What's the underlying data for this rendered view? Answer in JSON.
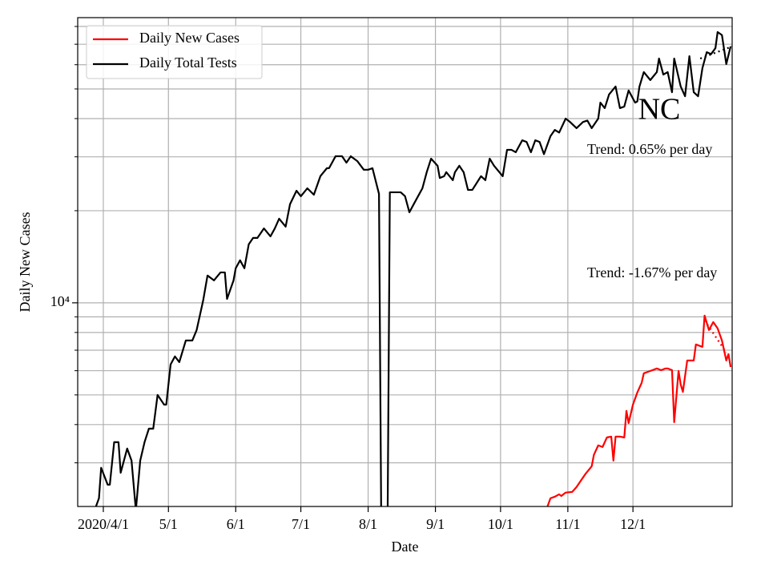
{
  "chart_data": {
    "type": "line",
    "title": "NC",
    "xlabel": "Date",
    "ylabel": "Daily New Cases",
    "annotations": [
      "Trend: 0.65% per day",
      "Trend: -1.67% per day"
    ],
    "log_y": true,
    "grid": true,
    "legend": "upper left",
    "xlim": [
      -11.8,
      289.7
    ],
    "xticks": [
      {
        "value": 0,
        "label": "2020/4/1"
      },
      {
        "value": 30,
        "label": "5/1"
      },
      {
        "value": 61,
        "label": "6/1"
      },
      {
        "value": 91,
        "label": "7/1"
      },
      {
        "value": 122,
        "label": "8/1"
      },
      {
        "value": 153,
        "label": "9/1"
      },
      {
        "value": 183,
        "label": "10/1"
      },
      {
        "value": 214,
        "label": "11/1"
      },
      {
        "value": 244,
        "label": "12/1"
      }
    ],
    "ylim": [
      2160,
      85500
    ],
    "yticks": [
      {
        "value": 10000,
        "label": "10⁴"
      }
    ],
    "yminorticks": [
      3000,
      4000,
      5000,
      6000,
      7000,
      8000,
      9000,
      20000,
      30000,
      40000,
      50000,
      60000,
      70000,
      80000
    ],
    "series": [
      {
        "name": "Daily New Cases",
        "color": "#ff0000",
        "x": [
          204,
          206,
          208,
          210,
          211,
          213,
          216,
          218,
          220,
          222,
          225,
          226,
          228,
          230,
          232,
          234,
          235,
          236,
          238,
          240,
          241,
          242,
          244,
          246,
          248,
          249,
          251,
          253,
          255,
          257,
          259,
          260,
          262,
          263,
          265,
          266,
          267,
          269,
          272,
          273,
          276,
          277,
          279,
          281,
          283,
          285,
          287,
          288,
          289
        ],
        "values": [
          2100,
          2298,
          2325,
          2367,
          2338,
          2398,
          2410,
          2500,
          2624,
          2752,
          2924,
          3186,
          3421,
          3380,
          3631,
          3654,
          3050,
          3654,
          3654,
          3631,
          4433,
          4047,
          4650,
          5091,
          5472,
          5884,
          5953,
          6025,
          6100,
          6025,
          6100,
          6100,
          6025,
          4074,
          5990,
          5409,
          5118,
          6480,
          6480,
          7310,
          7180,
          9080,
          8150,
          8650,
          8250,
          7530,
          6480,
          6800,
          6170
        ]
      },
      {
        "name": "Daily Total Tests",
        "color": "#000000",
        "x": [
          -4,
          -2,
          -1,
          2,
          3,
          5,
          7,
          8,
          11,
          13,
          15,
          17,
          19,
          21,
          23,
          25,
          28,
          29,
          31,
          33,
          35,
          38,
          41,
          43,
          46,
          48,
          51,
          54,
          56,
          57,
          60,
          61,
          63,
          65,
          67,
          69,
          71,
          74,
          77,
          79,
          81,
          84,
          86,
          89,
          91,
          94,
          97,
          100,
          103,
          104,
          107,
          110,
          112,
          114,
          117,
          120,
          122,
          124,
          127,
          128,
          131,
          132,
          137,
          139,
          141,
          143,
          146,
          147,
          149,
          151,
          154,
          155,
          157,
          158,
          161,
          162,
          164,
          166,
          168,
          170,
          174,
          176,
          178,
          180,
          184,
          186,
          188,
          190,
          193,
          195,
          197,
          199,
          201,
          203,
          206,
          208,
          210,
          213,
          215,
          218,
          221,
          223,
          225,
          228,
          229,
          231,
          233,
          236,
          238,
          240,
          242,
          245,
          246,
          247,
          249,
          252,
          255,
          256,
          258,
          260,
          262,
          263,
          266,
          268,
          270,
          272,
          274,
          276,
          278,
          280,
          282,
          283,
          285,
          287,
          289
        ],
        "values": [
          2100,
          2300,
          2890,
          2545,
          2545,
          3505,
          3505,
          2785,
          3340,
          3050,
          2100,
          3050,
          3505,
          3880,
          3880,
          5000,
          4650,
          4650,
          6290,
          6680,
          6400,
          7530,
          7530,
          8150,
          10180,
          12280,
          11840,
          12570,
          12570,
          10300,
          11840,
          12970,
          13770,
          12970,
          15530,
          16300,
          16300,
          17500,
          16490,
          17500,
          18830,
          17740,
          20990,
          23240,
          22300,
          23670,
          22550,
          25930,
          27540,
          27540,
          30130,
          30130,
          28710,
          30130,
          29060,
          27220,
          27220,
          27540,
          22700,
          2100,
          2100,
          22970,
          22970,
          22300,
          19770,
          21000,
          22970,
          23670,
          26730,
          29590,
          28050,
          25590,
          25930,
          26730,
          25160,
          26730,
          28050,
          26730,
          23390,
          23390,
          25930,
          25160,
          29590,
          28050,
          25930,
          31620,
          31620,
          31050,
          33970,
          33550,
          31050,
          33970,
          33550,
          30600,
          35040,
          36730,
          36000,
          39990,
          39000,
          37220,
          39000,
          39400,
          37220,
          39990,
          45110,
          43270,
          47970,
          50920,
          43270,
          43800,
          49430,
          45110,
          45500,
          50920,
          56750,
          53460,
          56750,
          62850,
          55700,
          56750,
          48770,
          62850,
          50920,
          47320,
          63970,
          48770,
          47320,
          58470,
          65940,
          65000,
          67970,
          76700,
          75000,
          60290,
          68850
        ]
      }
    ],
    "trend_lines": [
      {
        "color": "#ff0000",
        "x": [
          277,
          287
        ],
        "values": [
          8760,
          6880
        ]
      },
      {
        "color": "#000000",
        "x": [
          275,
          289.7
        ],
        "values": [
          62850,
          68850
        ]
      }
    ]
  }
}
